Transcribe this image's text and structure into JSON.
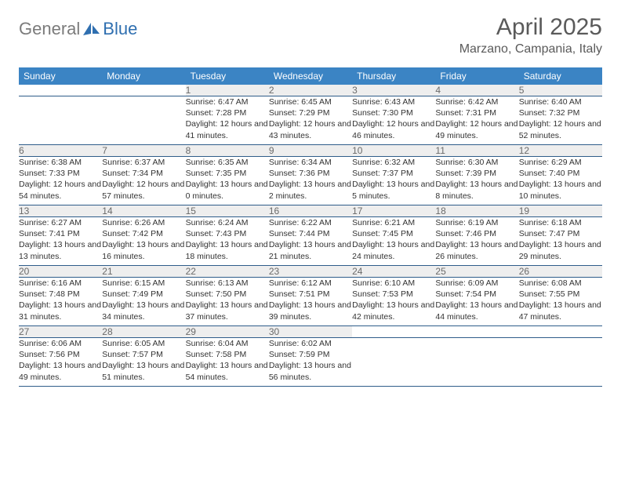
{
  "logo": {
    "gray": "General",
    "blue": "Blue"
  },
  "title": "April 2025",
  "location": "Marzano, Campania, Italy",
  "colors": {
    "header_bg": "#3b84c4",
    "header_text": "#ffffff",
    "daynum_bg": "#eeeeee",
    "daynum_text": "#6a6a6a",
    "body_text": "#333333",
    "row_border": "#2f5d8a",
    "logo_gray": "#7b7b7b",
    "logo_blue": "#2f6fb0",
    "title_color": "#5a5a5a"
  },
  "weekdays": [
    "Sunday",
    "Monday",
    "Tuesday",
    "Wednesday",
    "Thursday",
    "Friday",
    "Saturday"
  ],
  "weeks": [
    [
      null,
      null,
      {
        "n": "1",
        "sr": "Sunrise: 6:47 AM",
        "ss": "Sunset: 7:28 PM",
        "dl": "Daylight: 12 hours and 41 minutes."
      },
      {
        "n": "2",
        "sr": "Sunrise: 6:45 AM",
        "ss": "Sunset: 7:29 PM",
        "dl": "Daylight: 12 hours and 43 minutes."
      },
      {
        "n": "3",
        "sr": "Sunrise: 6:43 AM",
        "ss": "Sunset: 7:30 PM",
        "dl": "Daylight: 12 hours and 46 minutes."
      },
      {
        "n": "4",
        "sr": "Sunrise: 6:42 AM",
        "ss": "Sunset: 7:31 PM",
        "dl": "Daylight: 12 hours and 49 minutes."
      },
      {
        "n": "5",
        "sr": "Sunrise: 6:40 AM",
        "ss": "Sunset: 7:32 PM",
        "dl": "Daylight: 12 hours and 52 minutes."
      }
    ],
    [
      {
        "n": "6",
        "sr": "Sunrise: 6:38 AM",
        "ss": "Sunset: 7:33 PM",
        "dl": "Daylight: 12 hours and 54 minutes."
      },
      {
        "n": "7",
        "sr": "Sunrise: 6:37 AM",
        "ss": "Sunset: 7:34 PM",
        "dl": "Daylight: 12 hours and 57 minutes."
      },
      {
        "n": "8",
        "sr": "Sunrise: 6:35 AM",
        "ss": "Sunset: 7:35 PM",
        "dl": "Daylight: 13 hours and 0 minutes."
      },
      {
        "n": "9",
        "sr": "Sunrise: 6:34 AM",
        "ss": "Sunset: 7:36 PM",
        "dl": "Daylight: 13 hours and 2 minutes."
      },
      {
        "n": "10",
        "sr": "Sunrise: 6:32 AM",
        "ss": "Sunset: 7:37 PM",
        "dl": "Daylight: 13 hours and 5 minutes."
      },
      {
        "n": "11",
        "sr": "Sunrise: 6:30 AM",
        "ss": "Sunset: 7:39 PM",
        "dl": "Daylight: 13 hours and 8 minutes."
      },
      {
        "n": "12",
        "sr": "Sunrise: 6:29 AM",
        "ss": "Sunset: 7:40 PM",
        "dl": "Daylight: 13 hours and 10 minutes."
      }
    ],
    [
      {
        "n": "13",
        "sr": "Sunrise: 6:27 AM",
        "ss": "Sunset: 7:41 PM",
        "dl": "Daylight: 13 hours and 13 minutes."
      },
      {
        "n": "14",
        "sr": "Sunrise: 6:26 AM",
        "ss": "Sunset: 7:42 PM",
        "dl": "Daylight: 13 hours and 16 minutes."
      },
      {
        "n": "15",
        "sr": "Sunrise: 6:24 AM",
        "ss": "Sunset: 7:43 PM",
        "dl": "Daylight: 13 hours and 18 minutes."
      },
      {
        "n": "16",
        "sr": "Sunrise: 6:22 AM",
        "ss": "Sunset: 7:44 PM",
        "dl": "Daylight: 13 hours and 21 minutes."
      },
      {
        "n": "17",
        "sr": "Sunrise: 6:21 AM",
        "ss": "Sunset: 7:45 PM",
        "dl": "Daylight: 13 hours and 24 minutes."
      },
      {
        "n": "18",
        "sr": "Sunrise: 6:19 AM",
        "ss": "Sunset: 7:46 PM",
        "dl": "Daylight: 13 hours and 26 minutes."
      },
      {
        "n": "19",
        "sr": "Sunrise: 6:18 AM",
        "ss": "Sunset: 7:47 PM",
        "dl": "Daylight: 13 hours and 29 minutes."
      }
    ],
    [
      {
        "n": "20",
        "sr": "Sunrise: 6:16 AM",
        "ss": "Sunset: 7:48 PM",
        "dl": "Daylight: 13 hours and 31 minutes."
      },
      {
        "n": "21",
        "sr": "Sunrise: 6:15 AM",
        "ss": "Sunset: 7:49 PM",
        "dl": "Daylight: 13 hours and 34 minutes."
      },
      {
        "n": "22",
        "sr": "Sunrise: 6:13 AM",
        "ss": "Sunset: 7:50 PM",
        "dl": "Daylight: 13 hours and 37 minutes."
      },
      {
        "n": "23",
        "sr": "Sunrise: 6:12 AM",
        "ss": "Sunset: 7:51 PM",
        "dl": "Daylight: 13 hours and 39 minutes."
      },
      {
        "n": "24",
        "sr": "Sunrise: 6:10 AM",
        "ss": "Sunset: 7:53 PM",
        "dl": "Daylight: 13 hours and 42 minutes."
      },
      {
        "n": "25",
        "sr": "Sunrise: 6:09 AM",
        "ss": "Sunset: 7:54 PM",
        "dl": "Daylight: 13 hours and 44 minutes."
      },
      {
        "n": "26",
        "sr": "Sunrise: 6:08 AM",
        "ss": "Sunset: 7:55 PM",
        "dl": "Daylight: 13 hours and 47 minutes."
      }
    ],
    [
      {
        "n": "27",
        "sr": "Sunrise: 6:06 AM",
        "ss": "Sunset: 7:56 PM",
        "dl": "Daylight: 13 hours and 49 minutes."
      },
      {
        "n": "28",
        "sr": "Sunrise: 6:05 AM",
        "ss": "Sunset: 7:57 PM",
        "dl": "Daylight: 13 hours and 51 minutes."
      },
      {
        "n": "29",
        "sr": "Sunrise: 6:04 AM",
        "ss": "Sunset: 7:58 PM",
        "dl": "Daylight: 13 hours and 54 minutes."
      },
      {
        "n": "30",
        "sr": "Sunrise: 6:02 AM",
        "ss": "Sunset: 7:59 PM",
        "dl": "Daylight: 13 hours and 56 minutes."
      },
      null,
      null,
      null
    ]
  ]
}
